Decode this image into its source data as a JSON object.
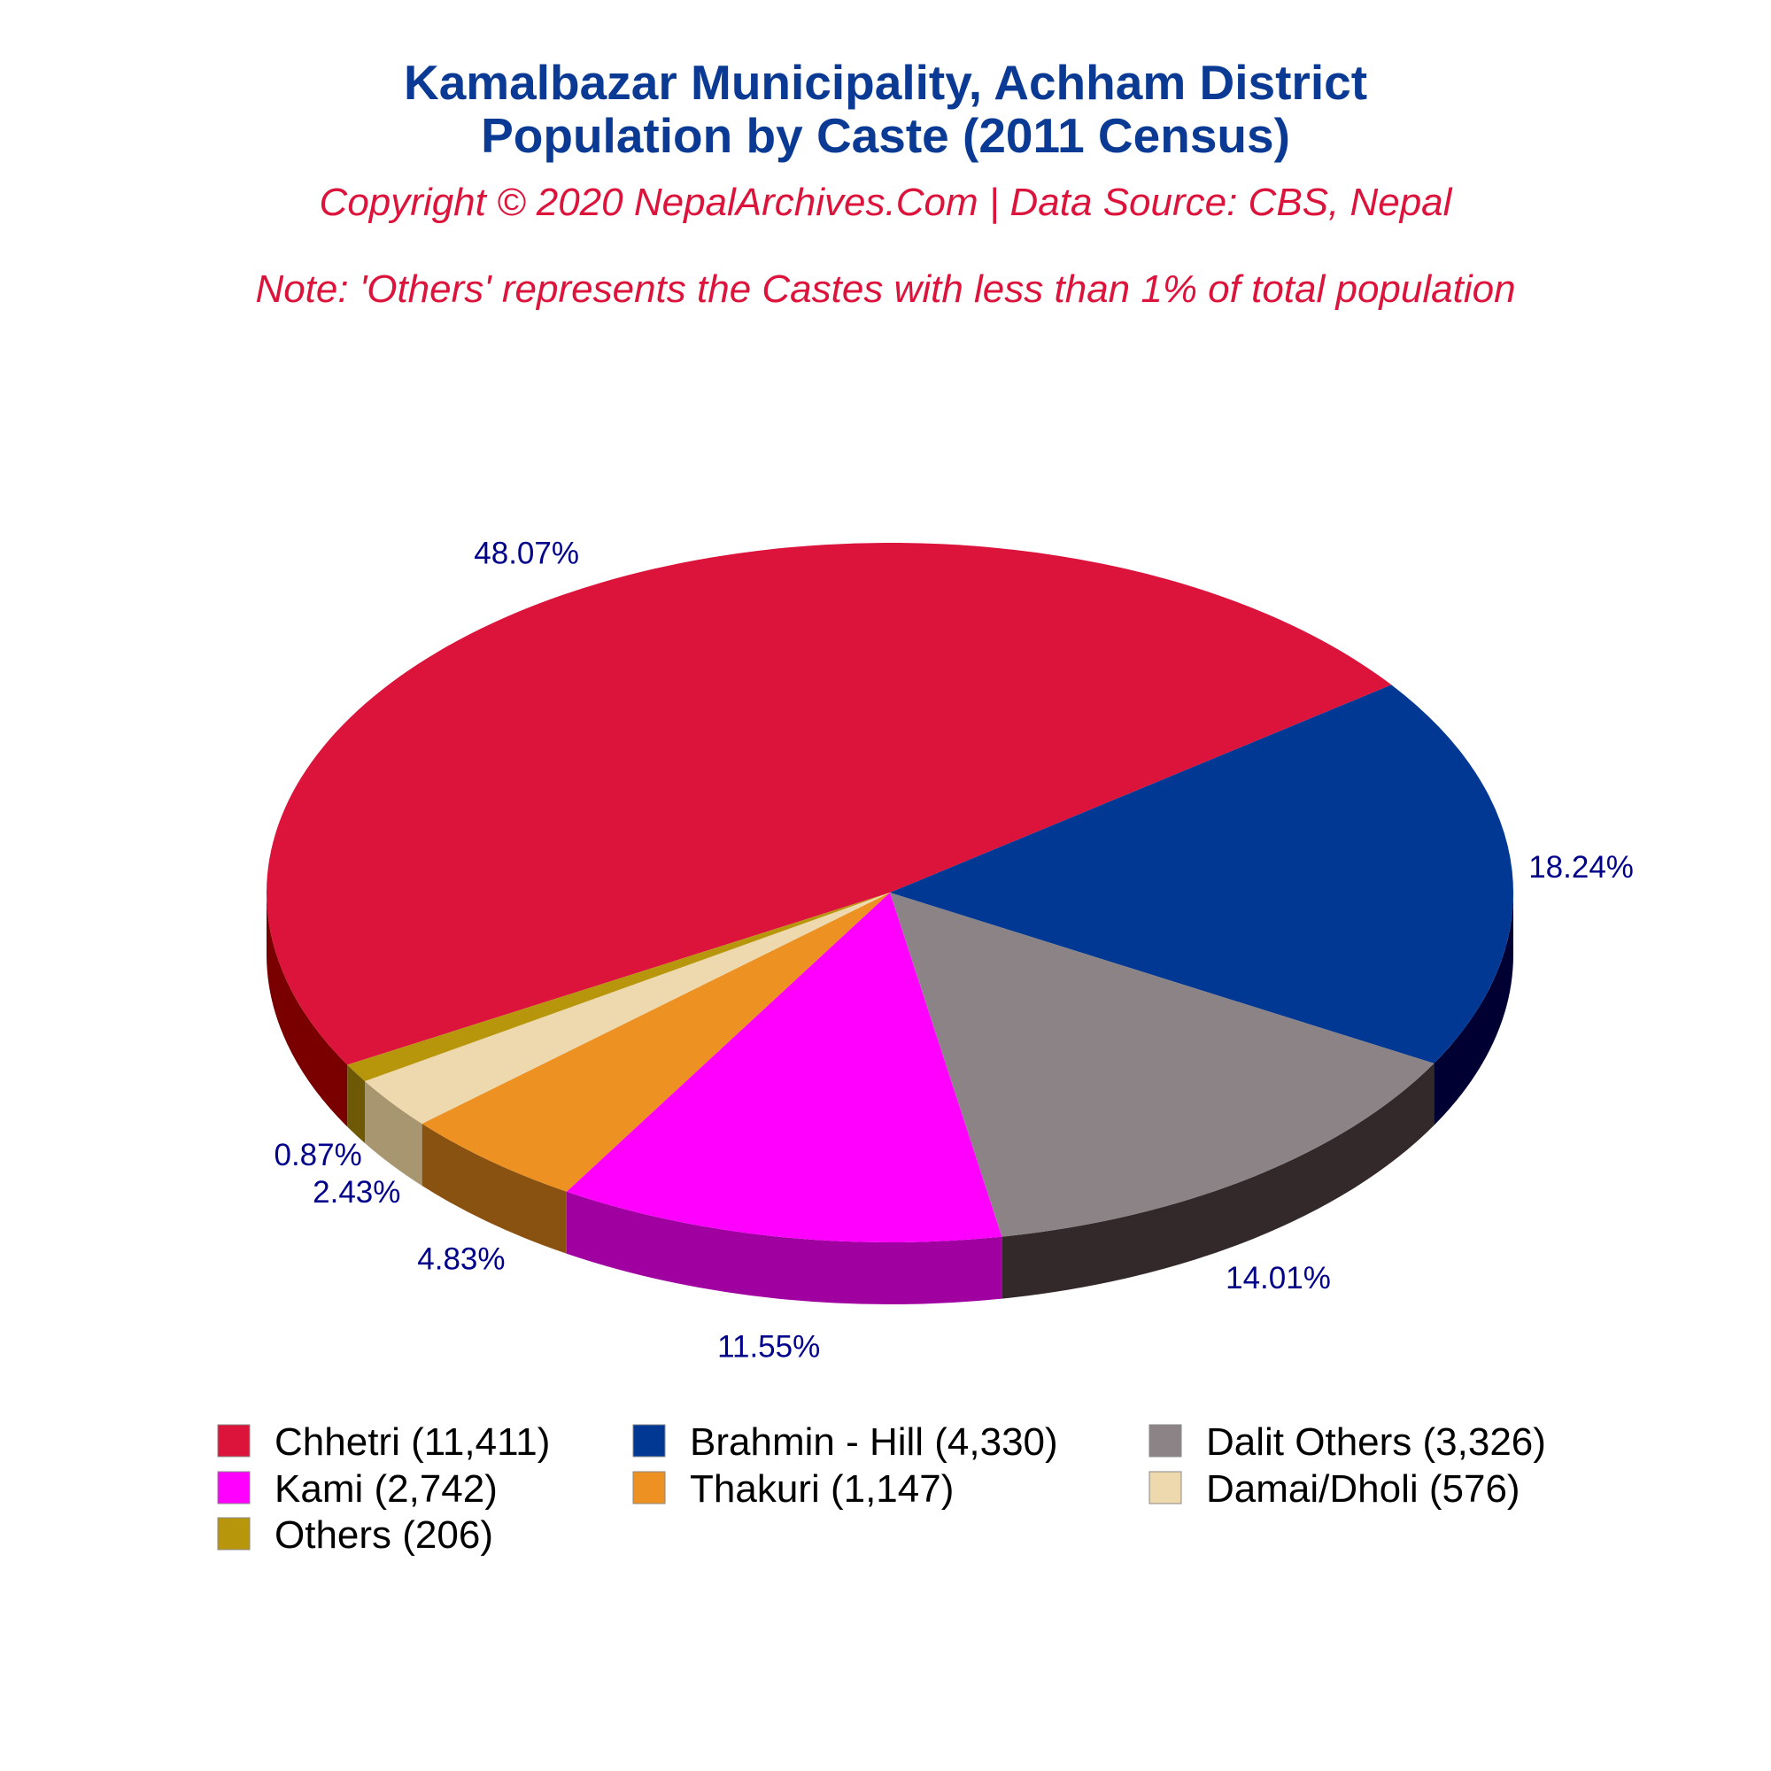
{
  "chart_data": {
    "type": "pie",
    "title": "Kamalbazar Municipality, Achham District",
    "subtitle": "Population by Caste (2011 Census)",
    "copyright": "Copyright © 2020 NepalArchives.Com | Data Source: CBS, Nepal",
    "note": "Note: 'Others' represents the Castes with less than 1% of total population",
    "legend_position": "bottom",
    "slices": [
      {
        "label": "Chhetri (11,411)",
        "category": "Chhetri",
        "value": 11411,
        "percent_label": "48.07%",
        "color": "#dc143c",
        "side_color": "#7a0000"
      },
      {
        "label": "Brahmin - Hill (4,330)",
        "category": "Brahmin - Hill",
        "value": 4330,
        "percent_label": "18.24%",
        "color": "#003893",
        "side_color": "#000033"
      },
      {
        "label": "Dalit Others (3,326)",
        "category": "Dalit Others",
        "value": 3326,
        "percent_label": "14.01%",
        "color": "#8b8385",
        "side_color": "#33292b"
      },
      {
        "label": "Kami (2,742)",
        "category": "Kami",
        "value": 2742,
        "percent_label": "11.55%",
        "color": "#ff00ff",
        "side_color": "#a000a0"
      },
      {
        "label": "Thakuri (1,147)",
        "category": "Thakuri",
        "value": 1147,
        "percent_label": "4.83%",
        "color": "#ec9122",
        "side_color": "#8a5210"
      },
      {
        "label": "Damai/Dholi (576)",
        "category": "Damai/Dholi",
        "value": 576,
        "percent_label": "2.43%",
        "color": "#eed8ae",
        "side_color": "#a89670"
      },
      {
        "label": "Others (206)",
        "category": "Others",
        "value": 206,
        "percent_label": "0.87%",
        "color": "#b8960c",
        "side_color": "#6e5a06"
      }
    ]
  }
}
